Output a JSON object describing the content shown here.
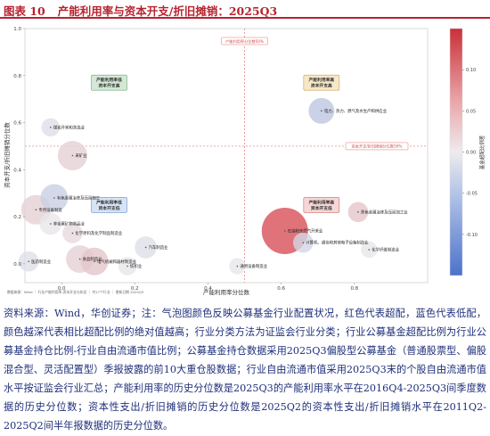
{
  "header": {
    "figure_label": "图表 10",
    "title": "产能利用率与资本开支/折旧摊销：2025Q3"
  },
  "chart_data": {
    "type": "scatter",
    "xlabel": "产能利用率分位数",
    "ylabel": "资本开支/折旧摊销分位数",
    "xlim": [
      -0.1,
      1.0
    ],
    "ylim": [
      -0.08,
      1.0
    ],
    "xticks": [
      0.0,
      0.2,
      0.4,
      0.6,
      0.8
    ],
    "yticks": [
      0.0,
      0.2,
      0.4,
      0.6,
      0.8,
      1.0
    ],
    "reference_lines": [
      {
        "axis": "x",
        "value": 0.5,
        "label": "产能利用率分位数50%"
      },
      {
        "axis": "y",
        "value": 0.5,
        "label": "资本开支/折旧摊销分位数50%"
      }
    ],
    "quadrants": [
      {
        "id": "q_tl",
        "label": "产能利用率低\n资本开支高",
        "x": 0.13,
        "y": 0.77
      },
      {
        "id": "q_tr",
        "label": "产能利用率高\n资本开支高",
        "x": 0.71,
        "y": 0.77
      },
      {
        "id": "q_bl",
        "label": "产能利用率低\n资本开支低",
        "x": 0.13,
        "y": 0.25
      },
      {
        "id": "q_br",
        "label": "产能利用率高\n资本开支低",
        "x": 0.71,
        "y": 0.25
      }
    ],
    "points": [
      {
        "label": "煤炭开采和洗选业",
        "x": -0.03,
        "y": 0.58,
        "size": 0.25,
        "color": -0.01
      },
      {
        "label": "电力、热力、燃气及水生产和供应业",
        "x": 0.71,
        "y": 0.65,
        "size": 0.45,
        "color": -0.04
      },
      {
        "label": "采矿业",
        "x": 0.03,
        "y": 0.46,
        "size": 0.55,
        "color": 0.02
      },
      {
        "label": "有色金属冶炼及压延加工",
        "x": -0.02,
        "y": 0.28,
        "size": 0.5,
        "color": -0.03
      },
      {
        "label": "专用设备制造",
        "x": -0.07,
        "y": 0.23,
        "size": 0.55,
        "color": 0.02
      },
      {
        "label": "非金属矿物制品业",
        "x": -0.03,
        "y": 0.17,
        "size": 0.35,
        "color": 0.0
      },
      {
        "label": "化学原料及化学制品制造业",
        "x": 0.03,
        "y": 0.13,
        "size": 0.3,
        "color": 0.01
      },
      {
        "label": "医药制造业",
        "x": -0.09,
        "y": 0.01,
        "size": 0.3,
        "color": -0.01
      },
      {
        "label": "食品制造业",
        "x": 0.05,
        "y": 0.02,
        "size": 0.5,
        "color": 0.02
      },
      {
        "label": "电气机械和器材制造业",
        "x": 0.09,
        "y": 0.01,
        "size": 0.5,
        "color": 0.03
      },
      {
        "label": "汽车制造业",
        "x": 0.23,
        "y": 0.07,
        "size": 0.35,
        "color": -0.01
      },
      {
        "label": "纺织业",
        "x": 0.18,
        "y": -0.01,
        "size": 0.25,
        "color": 0.0
      },
      {
        "label": "石油和天然气开采业",
        "x": 0.61,
        "y": 0.14,
        "size": 1.0,
        "color": 0.14
      },
      {
        "label": "计算机、通信和其他电子设备制造业",
        "x": 0.66,
        "y": 0.09,
        "size": 0.3,
        "color": -0.02
      },
      {
        "label": "黑色金属冶炼及压延加工业",
        "x": 0.81,
        "y": 0.22,
        "size": 0.3,
        "color": 0.03
      },
      {
        "label": "化学纤维制造业",
        "x": 0.84,
        "y": 0.06,
        "size": 0.2,
        "color": 0.0
      },
      {
        "label": "通用设备制造业",
        "x": 0.48,
        "y": -0.01,
        "size": 0.2,
        "color": 0.0
      }
    ],
    "colorbar": {
      "label": "基金超配比例差",
      "min": -0.15,
      "max": 0.15,
      "ticks": [
        -0.1,
        -0.05,
        0.0,
        0.05,
        0.1
      ],
      "tick_labels": [
        "-0.10",
        "-0.05",
        "0.00",
        "0.05",
        "0.10"
      ]
    },
    "footnote": "数据来源：Wind ｜ 行业产能利用率-资本开支与折旧 ｜ 共17个行业 ｜ 更新日期 2025Q3",
    "colors": {
      "positive": "#d6454c",
      "neutral": "#e8e6ea",
      "negative": "#4c72c9"
    }
  },
  "source": {
    "text": "资料来源：Wind，华创证券；注：气泡图颜色反映公募基金行业配置状况，红色代表超配，蓝色代表低配，颜色越深代表相比超配比例的绝对值越高；行业分类方法为证监会行业分类；行业公募基金超配比例为行业公募基金持仓比例-行业自由流通市值比例；公募基金持仓数据采用2025Q3偏股型公募基金（普通股票型、偏股混合型、灵活配置型）季报披露的前10大重仓股数据；行业自由流通市值采用2025Q3末的个股自由流通市值水平按证监会行业汇总；产能利用率的历史分位数是2025Q3的产能利用率水平在2016Q4-2025Q3间季度数据的历史分位数；资本性支出/折旧摊销的历史分位数是2025Q2的资本性支出/折旧摊销水平在2011Q2-2025Q2间半年报数据的历史分位数。"
  }
}
